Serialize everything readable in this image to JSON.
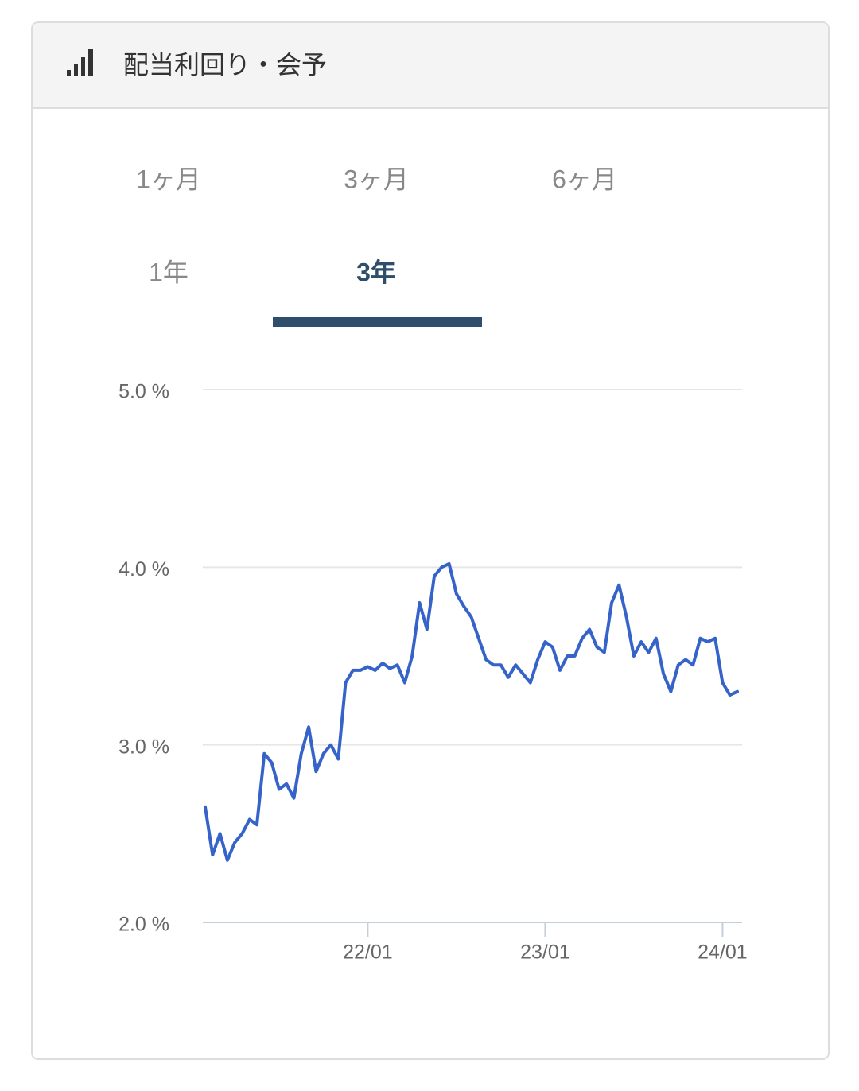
{
  "header": {
    "title": "配当利回り・会予"
  },
  "tabs": {
    "items": [
      "1ヶ月",
      "3ヶ月",
      "6ヶ月",
      "1年",
      "3年"
    ],
    "selected": 4
  },
  "chart_data": {
    "type": "line",
    "categories": [
      null,
      null,
      null,
      null,
      null,
      null,
      null,
      null,
      null,
      null,
      null,
      null,
      null,
      null,
      null,
      null,
      null,
      null,
      null,
      null,
      null,
      null,
      "22/01",
      null,
      null,
      null,
      null,
      null,
      null,
      null,
      null,
      null,
      null,
      null,
      null,
      null,
      null,
      null,
      null,
      null,
      null,
      null,
      null,
      null,
      null,
      null,
      "23/01",
      null,
      null,
      null,
      null,
      null,
      null,
      null,
      null,
      null,
      null,
      null,
      null,
      null,
      null,
      null,
      null,
      null,
      null,
      null,
      null,
      null,
      null,
      null,
      "24/01",
      null,
      null
    ],
    "values": [
      2.65,
      2.38,
      2.5,
      2.35,
      2.45,
      2.5,
      2.58,
      2.55,
      2.95,
      2.9,
      2.75,
      2.78,
      2.7,
      2.95,
      3.1,
      2.85,
      2.95,
      3.0,
      2.92,
      3.35,
      3.42,
      3.42,
      3.44,
      3.42,
      3.46,
      3.43,
      3.45,
      3.35,
      3.5,
      3.8,
      3.65,
      3.95,
      4.0,
      4.02,
      3.85,
      3.78,
      3.72,
      3.6,
      3.48,
      3.45,
      3.45,
      3.38,
      3.45,
      3.4,
      3.35,
      3.48,
      3.58,
      3.55,
      3.42,
      3.5,
      3.5,
      3.6,
      3.65,
      3.55,
      3.52,
      3.8,
      3.9,
      3.72,
      3.5,
      3.58,
      3.52,
      3.6,
      3.4,
      3.3,
      3.45,
      3.48,
      3.45,
      3.6,
      3.58,
      3.6,
      3.35,
      3.28,
      3.3
    ],
    "color": "#3563c9",
    "ylim": [
      2,
      5
    ],
    "yticks": [
      {
        "value": 2,
        "label": "2.0 %"
      },
      {
        "value": 3,
        "label": "3.0 %"
      },
      {
        "value": 4,
        "label": "4.0 %"
      },
      {
        "value": 5,
        "label": "5.0 %"
      }
    ],
    "grid": true
  }
}
